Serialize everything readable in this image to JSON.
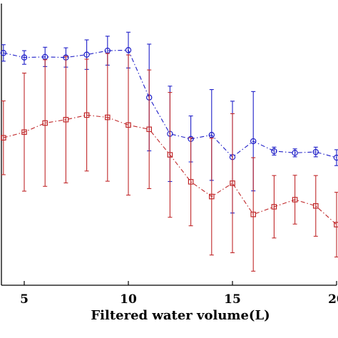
{
  "chart_data": {
    "type": "line",
    "xlabel": "Filtered water volume(L)",
    "ylabel": "",
    "title": "",
    "xlim": [
      4,
      20
    ],
    "ylim": [
      0,
      1
    ],
    "x_ticks": [
      {
        "value": 5,
        "label": "5"
      },
      {
        "value": 10,
        "label": "10"
      },
      {
        "value": 15,
        "label": "15"
      },
      {
        "value": 20,
        "label": "20"
      }
    ],
    "x": [
      4,
      5,
      6,
      7,
      8,
      9,
      10,
      11,
      12,
      13,
      14,
      15,
      16,
      17,
      18,
      19,
      20
    ],
    "series": [
      {
        "color": "#1f1fc8",
        "marker": "circle",
        "line_style": "dash-dot",
        "values": [
          0.919,
          0.903,
          0.905,
          0.903,
          0.913,
          0.927,
          0.929,
          0.762,
          0.634,
          0.616,
          0.63,
          0.552,
          0.608,
          0.573,
          0.567,
          0.57,
          0.55
        ],
        "errors": [
          0.029,
          0.024,
          0.034,
          0.034,
          0.052,
          0.051,
          0.063,
          0.188,
          0.168,
          0.081,
          0.16,
          0.197,
          0.175,
          0.014,
          0.014,
          0.017,
          0.028
        ]
      },
      {
        "color": "#c0282a",
        "marker": "square",
        "line_style": "dash-dot",
        "values": [
          0.62,
          0.64,
          0.672,
          0.684,
          0.7,
          0.692,
          0.665,
          0.65,
          0.56,
          0.465,
          0.413,
          0.46,
          0.35,
          0.377,
          0.402,
          0.38,
          0.314
        ],
        "errors": [
          0.13,
          0.208,
          0.223,
          0.223,
          0.197,
          0.225,
          0.247,
          0.209,
          0.22,
          0.155,
          0.206,
          0.245,
          0.2,
          0.11,
          0.086,
          0.107,
          0.114
        ]
      }
    ]
  }
}
